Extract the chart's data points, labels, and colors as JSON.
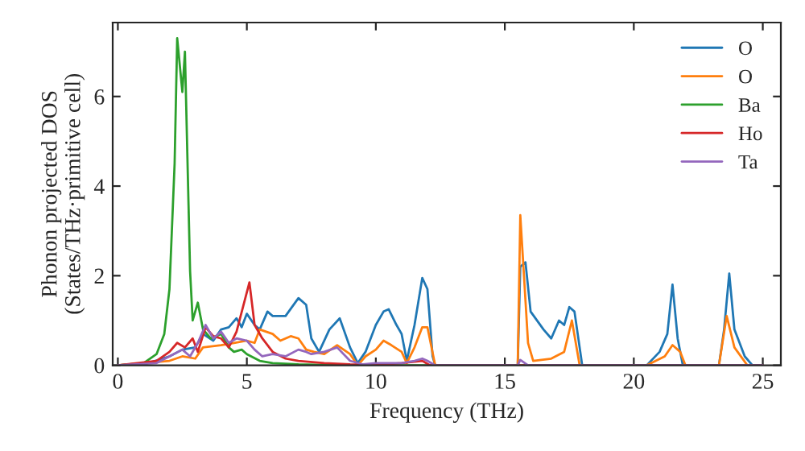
{
  "chart_data": {
    "type": "line",
    "xlabel": "Frequency (THz)",
    "ylabel": "Phonon projected DOS\n(States/THz·primitive cell)",
    "xlim": [
      -0.2,
      25.7
    ],
    "ylim": [
      0,
      7.65
    ],
    "xticks": [
      0,
      5,
      10,
      15,
      20,
      25
    ],
    "yticks": [
      0,
      2,
      4,
      6
    ],
    "grid": false,
    "legend": "top right",
    "marker": "none",
    "line_style": "solid",
    "series": [
      {
        "name": "O",
        "color": "#1f77b4",
        "x": [
          0,
          1,
          2,
          2.5,
          3,
          3.3,
          3.7,
          4,
          4.3,
          4.6,
          4.8,
          5,
          5.3,
          5.5,
          5.8,
          6,
          6.5,
          7,
          7.3,
          7.5,
          7.8,
          8.2,
          8.6,
          9,
          9.3,
          9.6,
          10,
          10.3,
          10.5,
          10.8,
          11,
          11.2,
          11.5,
          11.8,
          12,
          12.2,
          12.3,
          15.5,
          15.6,
          15.8,
          16,
          16.5,
          16.8,
          17.1,
          17.3,
          17.5,
          17.7,
          18,
          20.5,
          21,
          21.3,
          21.5,
          21.7,
          21.9,
          23.3,
          23.5,
          23.7,
          23.9,
          24.3,
          24.6,
          25
        ],
        "values": [
          0,
          0.02,
          0.2,
          0.35,
          0.4,
          0.7,
          0.55,
          0.8,
          0.85,
          1.05,
          0.85,
          1.15,
          0.9,
          0.8,
          1.2,
          1.1,
          1.1,
          1.5,
          1.35,
          0.6,
          0.3,
          0.8,
          1.05,
          0.4,
          0.05,
          0.3,
          0.9,
          1.2,
          1.25,
          0.9,
          0.7,
          0.1,
          0.9,
          1.95,
          1.7,
          0.2,
          0,
          0,
          2.2,
          2.3,
          1.2,
          0.8,
          0.6,
          1.0,
          0.9,
          1.3,
          1.2,
          0,
          0,
          0.3,
          0.7,
          1.8,
          0.6,
          0,
          0,
          0.8,
          2.05,
          0.8,
          0.2,
          0,
          0
        ]
      },
      {
        "name": "O",
        "color": "#ff7f0e",
        "x": [
          0,
          2,
          2.5,
          3,
          3.3,
          4,
          4.5,
          5,
          5.3,
          5.5,
          6,
          6.3,
          6.7,
          7,
          7.3,
          7.6,
          8,
          8.5,
          9,
          9.3,
          9.6,
          10,
          10.3,
          10.6,
          11,
          11.2,
          11.5,
          11.8,
          12,
          12.3,
          15.5,
          15.6,
          15.9,
          16.1,
          16.8,
          17.3,
          17.6,
          17.9,
          20.5,
          21.2,
          21.5,
          21.8,
          22,
          23.3,
          23.6,
          23.9,
          24.4,
          25
        ],
        "values": [
          0,
          0.1,
          0.2,
          0.15,
          0.4,
          0.45,
          0.5,
          0.55,
          0.5,
          0.8,
          0.7,
          0.55,
          0.65,
          0.6,
          0.35,
          0.3,
          0.25,
          0.45,
          0.25,
          0,
          0.2,
          0.35,
          0.55,
          0.45,
          0.3,
          0.05,
          0.4,
          0.85,
          0.85,
          0,
          0,
          3.35,
          0.5,
          0.1,
          0.15,
          0.3,
          1.0,
          0,
          0,
          0.2,
          0.45,
          0.3,
          0,
          0,
          1.1,
          0.4,
          0,
          0
        ]
      },
      {
        "name": "Ba",
        "color": "#2ca02c",
        "x": [
          0,
          1,
          1.5,
          1.8,
          2,
          2.2,
          2.3,
          2.5,
          2.6,
          2.8,
          2.9,
          3.1,
          3.3,
          3.6,
          4,
          4.3,
          4.5,
          4.8,
          5,
          5.5,
          6,
          7,
          8,
          9,
          25
        ],
        "values": [
          0,
          0.05,
          0.25,
          0.7,
          1.7,
          4.5,
          7.3,
          6.1,
          7.0,
          2.1,
          1.0,
          1.4,
          0.8,
          0.6,
          0.7,
          0.4,
          0.3,
          0.35,
          0.25,
          0.1,
          0.05,
          0.02,
          0.01,
          0,
          0
        ]
      },
      {
        "name": "Ho",
        "color": "#d62728",
        "x": [
          0,
          1.5,
          2,
          2.3,
          2.6,
          2.9,
          3.1,
          3.4,
          3.7,
          4,
          4.3,
          4.6,
          5.1,
          5.3,
          5.6,
          6,
          6.5,
          7,
          8,
          9,
          10,
          11,
          11.8,
          12.1,
          25
        ],
        "values": [
          0,
          0.1,
          0.3,
          0.5,
          0.4,
          0.6,
          0.3,
          0.85,
          0.65,
          0.6,
          0.4,
          0.75,
          1.85,
          0.9,
          0.6,
          0.3,
          0.15,
          0.1,
          0.05,
          0.02,
          0.01,
          0.05,
          0.1,
          0,
          0
        ]
      },
      {
        "name": "Ta",
        "color": "#9467bd",
        "x": [
          0,
          1.5,
          2,
          2.5,
          2.8,
          3.1,
          3.4,
          3.7,
          4,
          4.3,
          4.6,
          5,
          5.3,
          5.6,
          6,
          6.5,
          7,
          7.3,
          7.5,
          8,
          8.5,
          9,
          9.5,
          10,
          11,
          11.5,
          11.8,
          12,
          12.3,
          15.5,
          15.6,
          15.9,
          25
        ],
        "values": [
          0,
          0.05,
          0.2,
          0.35,
          0.2,
          0.5,
          0.9,
          0.6,
          0.75,
          0.5,
          0.6,
          0.55,
          0.35,
          0.2,
          0.25,
          0.2,
          0.35,
          0.3,
          0.25,
          0.3,
          0.4,
          0.1,
          0.02,
          0.05,
          0.05,
          0.1,
          0.15,
          0.1,
          0,
          0,
          0.12,
          0,
          0
        ]
      }
    ]
  }
}
